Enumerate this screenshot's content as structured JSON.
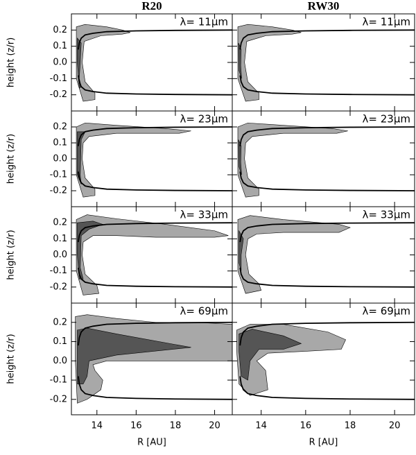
{
  "chart_data": [
    {
      "type": "contour",
      "title": "R20",
      "annotation": "λ= 11μm",
      "ylabel": "height (z/r)",
      "xlim": [
        12.7,
        20.9
      ],
      "ylim": [
        -0.3,
        0.3
      ],
      "xticks": [
        14,
        16,
        18,
        20
      ],
      "yticks": [
        -0.2,
        -0.1,
        {
          "value": 0,
          "label": "0.0"
        },
        0.1,
        0.2
      ],
      "regions": [
        {
          "color": "#a8a8a8",
          "x": [
            12.95,
            13.4,
            14.5,
            15.3,
            15.7,
            15.3,
            14.2,
            13.35,
            13.25,
            13.4,
            13.9,
            13.9,
            13.3,
            12.95
          ],
          "values": [
            0.22,
            0.235,
            0.22,
            0.2,
            0.185,
            0.175,
            0.165,
            0.13,
            0.0,
            -0.12,
            -0.19,
            -0.23,
            -0.24,
            -0.1
          ]
        },
        {
          "color": "#555555",
          "x": [
            13.0,
            13.2,
            13.15,
            13.1,
            13.2,
            13.1,
            13.0
          ],
          "values": [
            0.15,
            0.12,
            0.0,
            -0.1,
            -0.15,
            -0.16,
            0.0
          ]
        }
      ],
      "series": [
        {
          "color": "#000000",
          "x": [
            13.05,
            13.1,
            13.2,
            13.4,
            13.8,
            14.5,
            16,
            18,
            20.9
          ],
          "values": [
            0.08,
            0.12,
            0.15,
            0.17,
            0.18,
            0.19,
            0.195,
            0.198,
            0.2
          ]
        },
        {
          "color": "#000000",
          "x": [
            13.05,
            13.1,
            13.2,
            13.4,
            13.8,
            14.5,
            16,
            18,
            20.9
          ],
          "values": [
            -0.08,
            -0.12,
            -0.15,
            -0.17,
            -0.18,
            -0.19,
            -0.195,
            -0.198,
            -0.2
          ]
        }
      ]
    },
    {
      "type": "contour",
      "title": "RW30",
      "annotation": "λ= 11μm",
      "xlim": [
        12.7,
        20.9
      ],
      "ylim": [
        -0.3,
        0.3
      ],
      "xticks": [
        14,
        16,
        18,
        20
      ],
      "yticks": [
        -0.2,
        -0.1,
        {
          "value": 0,
          "label": "0.0"
        },
        0.1,
        0.2
      ],
      "regions": [
        {
          "color": "#a8a8a8",
          "x": [
            12.95,
            13.4,
            14.5,
            15.4,
            15.8,
            15.4,
            14.2,
            13.35,
            13.25,
            13.4,
            13.9,
            13.9,
            13.3,
            12.95
          ],
          "values": [
            0.22,
            0.235,
            0.22,
            0.2,
            0.185,
            0.175,
            0.165,
            0.13,
            0.0,
            -0.12,
            -0.19,
            -0.23,
            -0.24,
            -0.1
          ]
        },
        {
          "color": "#555555",
          "x": [
            12.98,
            13.1,
            13.08,
            13.12,
            13.0
          ],
          "values": [
            0.12,
            0.08,
            -0.02,
            -0.1,
            -0.05
          ]
        }
      ],
      "series": [
        {
          "color": "#000000",
          "x": [
            13.05,
            13.1,
            13.2,
            13.4,
            13.8,
            14.5,
            16,
            18,
            20.9
          ],
          "values": [
            0.08,
            0.12,
            0.15,
            0.17,
            0.18,
            0.19,
            0.195,
            0.198,
            0.2
          ]
        },
        {
          "color": "#000000",
          "x": [
            13.05,
            13.1,
            13.2,
            13.4,
            13.8,
            14.5,
            16,
            18,
            20.9
          ],
          "values": [
            -0.08,
            -0.12,
            -0.15,
            -0.17,
            -0.18,
            -0.19,
            -0.195,
            -0.198,
            -0.2
          ]
        }
      ]
    },
    {
      "type": "contour",
      "annotation": "λ= 23μm",
      "ylabel": "height (z/r)",
      "xlim": [
        12.7,
        20.9
      ],
      "ylim": [
        -0.3,
        0.3
      ],
      "xticks": [
        14,
        16,
        18,
        20
      ],
      "yticks": [
        -0.2,
        -0.1,
        {
          "value": 0,
          "label": "0.0"
        },
        0.1,
        0.2
      ],
      "regions": [
        {
          "color": "#a8a8a8",
          "x": [
            12.95,
            13.4,
            15,
            17.5,
            18.8,
            18.2,
            15,
            13.6,
            13.3,
            13.25,
            13.4,
            13.9,
            13.9,
            13.3,
            12.95
          ],
          "values": [
            0.2,
            0.225,
            0.21,
            0.19,
            0.175,
            0.16,
            0.16,
            0.14,
            0.1,
            0.0,
            -0.12,
            -0.19,
            -0.23,
            -0.24,
            -0.1
          ]
        },
        {
          "color": "#555555",
          "x": [
            13.0,
            13.4,
            13.2,
            13.15,
            13.2,
            13.0
          ],
          "values": [
            0.17,
            0.17,
            0.12,
            -0.1,
            -0.16,
            -0.1
          ]
        }
      ],
      "series": [
        {
          "color": "#000000",
          "x": [
            13.05,
            13.1,
            13.2,
            13.4,
            13.8,
            14.5,
            16,
            18,
            20.9
          ],
          "values": [
            0.08,
            0.12,
            0.15,
            0.17,
            0.18,
            0.19,
            0.195,
            0.198,
            0.2
          ]
        },
        {
          "color": "#000000",
          "x": [
            13.05,
            13.1,
            13.2,
            13.4,
            13.8,
            14.5,
            16,
            18,
            20.9
          ],
          "values": [
            -0.08,
            -0.12,
            -0.15,
            -0.17,
            -0.18,
            -0.19,
            -0.195,
            -0.198,
            -0.2
          ]
        }
      ]
    },
    {
      "type": "contour",
      "annotation": "λ= 23μm",
      "xlim": [
        12.7,
        20.9
      ],
      "ylim": [
        -0.3,
        0.3
      ],
      "xticks": [
        14,
        16,
        18,
        20
      ],
      "yticks": [
        -0.2,
        -0.1,
        {
          "value": 0,
          "label": "0.0"
        },
        0.1,
        0.2
      ],
      "regions": [
        {
          "color": "#a8a8a8",
          "x": [
            12.95,
            13.4,
            15,
            17.2,
            17.9,
            17.4,
            15,
            13.6,
            13.3,
            13.25,
            13.4,
            13.9,
            13.9,
            13.3,
            12.95
          ],
          "values": [
            0.2,
            0.225,
            0.21,
            0.19,
            0.175,
            0.16,
            0.16,
            0.14,
            0.1,
            0.0,
            -0.12,
            -0.19,
            -0.23,
            -0.24,
            -0.1
          ]
        },
        {
          "color": "#555555",
          "x": [
            12.98,
            13.1,
            13.08,
            13.12,
            13.0
          ],
          "values": [
            0.12,
            0.08,
            -0.02,
            -0.1,
            -0.05
          ]
        }
      ],
      "series": [
        {
          "color": "#000000",
          "x": [
            13.05,
            13.1,
            13.2,
            13.4,
            13.8,
            14.5,
            16,
            18,
            20.9
          ],
          "values": [
            0.08,
            0.12,
            0.15,
            0.17,
            0.18,
            0.19,
            0.195,
            0.198,
            0.2
          ]
        },
        {
          "color": "#000000",
          "x": [
            13.05,
            13.1,
            13.2,
            13.4,
            13.8,
            14.5,
            16,
            18,
            20.9
          ],
          "values": [
            -0.08,
            -0.12,
            -0.15,
            -0.17,
            -0.18,
            -0.19,
            -0.195,
            -0.198,
            -0.2
          ]
        }
      ]
    },
    {
      "type": "contour",
      "annotation": "λ= 33μm",
      "ylabel": "height (z/r)",
      "xlim": [
        12.7,
        20.9
      ],
      "ylim": [
        -0.3,
        0.3
      ],
      "xticks": [
        14,
        16,
        18,
        20
      ],
      "yticks": [
        -0.2,
        -0.1,
        {
          "value": 0,
          "label": "0.0"
        },
        0.1,
        0.2
      ],
      "regions": [
        {
          "color": "#a8a8a8",
          "x": [
            12.95,
            13.5,
            15,
            17.5,
            20,
            20.7,
            20,
            17,
            15,
            13.8,
            13.3,
            13.25,
            13.4,
            14.0,
            14.1,
            13.3,
            12.95
          ],
          "values": [
            0.22,
            0.25,
            0.225,
            0.19,
            0.15,
            0.12,
            0.11,
            0.11,
            0.12,
            0.12,
            0.08,
            0.0,
            -0.12,
            -0.19,
            -0.24,
            -0.25,
            -0.1
          ]
        },
        {
          "color": "#555555",
          "x": [
            13.0,
            13.8,
            14.3,
            13.6,
            13.2,
            13.15,
            13.3,
            13.1,
            13.0
          ],
          "values": [
            0.2,
            0.21,
            0.19,
            0.16,
            0.12,
            -0.08,
            -0.15,
            -0.15,
            0.0
          ]
        }
      ],
      "series": [
        {
          "color": "#000000",
          "x": [
            13.05,
            13.1,
            13.2,
            13.4,
            13.8,
            14.5,
            16,
            18,
            20.9
          ],
          "values": [
            0.08,
            0.12,
            0.15,
            0.17,
            0.18,
            0.19,
            0.195,
            0.198,
            0.2
          ]
        },
        {
          "color": "#000000",
          "x": [
            13.05,
            13.1,
            13.2,
            13.4,
            13.8,
            14.5,
            16,
            18,
            20.9
          ],
          "values": [
            -0.08,
            -0.12,
            -0.15,
            -0.17,
            -0.18,
            -0.19,
            -0.195,
            -0.198,
            -0.2
          ]
        }
      ]
    },
    {
      "type": "contour",
      "annotation": "λ= 33μm",
      "xlim": [
        12.7,
        20.9
      ],
      "ylim": [
        -0.3,
        0.3
      ],
      "xticks": [
        14,
        16,
        18,
        20
      ],
      "yticks": [
        -0.2,
        -0.1,
        {
          "value": 0,
          "label": "0.0"
        },
        0.1,
        0.2
      ],
      "regions": [
        {
          "color": "#a8a8a8",
          "x": [
            12.95,
            13.5,
            15,
            17.5,
            18.0,
            17.5,
            15,
            13.8,
            13.4,
            13.3,
            13.45,
            13.9,
            14.0,
            13.3,
            12.95
          ],
          "values": [
            0.22,
            0.245,
            0.22,
            0.19,
            0.17,
            0.14,
            0.14,
            0.13,
            0.1,
            0.0,
            -0.12,
            -0.18,
            -0.22,
            -0.24,
            -0.1
          ]
        },
        {
          "color": "#555555",
          "x": [
            13.0,
            13.2,
            13.1,
            13.1,
            13.0
          ],
          "values": [
            0.15,
            0.1,
            0.0,
            -0.1,
            -0.05
          ]
        }
      ],
      "series": [
        {
          "color": "#000000",
          "x": [
            13.05,
            13.1,
            13.2,
            13.4,
            13.8,
            14.5,
            16,
            18,
            20.9
          ],
          "values": [
            0.08,
            0.12,
            0.15,
            0.17,
            0.18,
            0.19,
            0.195,
            0.198,
            0.2
          ]
        },
        {
          "color": "#000000",
          "x": [
            13.05,
            13.1,
            13.2,
            13.4,
            13.8,
            14.5,
            16,
            18,
            20.9
          ],
          "values": [
            -0.08,
            -0.12,
            -0.15,
            -0.17,
            -0.18,
            -0.19,
            -0.195,
            -0.198,
            -0.2
          ]
        }
      ]
    },
    {
      "type": "contour",
      "annotation": "λ= 69μm",
      "ylabel": "height (z/r)",
      "xlabel": "R [AU]",
      "xlim": [
        12.7,
        20.9
      ],
      "ylim": [
        -0.28,
        0.3
      ],
      "xticks": [
        14,
        16,
        18,
        20
      ],
      "yticks": [
        -0.2,
        -0.1,
        {
          "value": 0,
          "label": "0.0"
        },
        0.1,
        0.2
      ],
      "regions": [
        {
          "color": "#a8a8a8",
          "x": [
            12.9,
            13.5,
            15,
            17,
            19,
            20.9,
            20.9,
            18,
            16,
            14.5,
            13.8,
            13.9,
            14.3,
            14.2,
            13.5,
            13.0,
            12.9
          ],
          "values": [
            0.23,
            0.24,
            0.22,
            0.2,
            0.2,
            0.19,
            0.0,
            0.0,
            0.0,
            0.0,
            -0.02,
            -0.05,
            -0.1,
            -0.15,
            -0.2,
            -0.22,
            0.0
          ]
        },
        {
          "color": "#555555",
          "x": [
            13.0,
            13.5,
            15,
            18.8,
            15,
            13.6,
            13.5,
            13.3,
            13.0
          ],
          "values": [
            0.16,
            0.17,
            0.14,
            0.07,
            0.03,
            0.0,
            -0.08,
            -0.12,
            -0.12
          ]
        }
      ],
      "series": [
        {
          "color": "#000000",
          "x": [
            13.05,
            13.1,
            13.2,
            13.4,
            13.8,
            14.5,
            16,
            18,
            20.9
          ],
          "values": [
            0.08,
            0.12,
            0.15,
            0.17,
            0.18,
            0.19,
            0.195,
            0.198,
            0.2
          ]
        },
        {
          "color": "#000000",
          "x": [
            13.05,
            13.1,
            13.2,
            13.4,
            13.8,
            14.5,
            16,
            18,
            20.9
          ],
          "values": [
            -0.08,
            -0.12,
            -0.15,
            -0.17,
            -0.18,
            -0.19,
            -0.195,
            -0.198,
            -0.2
          ]
        }
      ]
    },
    {
      "type": "contour",
      "annotation": "λ= 69μm",
      "xlabel": "R [AU]",
      "xlim": [
        12.7,
        20.9
      ],
      "ylim": [
        -0.28,
        0.3
      ],
      "xticks": [
        14,
        16,
        18,
        20
      ],
      "yticks": [
        -0.2,
        -0.1,
        {
          "value": 0,
          "label": "0.0"
        },
        0.1,
        0.2
      ],
      "regions": [
        {
          "color": "#a8a8a8",
          "x": [
            12.9,
            13.5,
            15,
            17,
            17.8,
            17.6,
            16,
            14.3,
            13.8,
            14.2,
            14.3,
            13.5,
            13.0,
            12.9
          ],
          "values": [
            0.16,
            0.19,
            0.19,
            0.15,
            0.11,
            0.06,
            0.05,
            0.04,
            0.0,
            -0.05,
            -0.15,
            -0.18,
            -0.12,
            0.05
          ]
        },
        {
          "color": "#555555",
          "x": [
            13.0,
            13.6,
            15,
            15.8,
            15,
            13.9,
            13.5,
            13.4,
            13.1,
            13.0
          ],
          "values": [
            0.14,
            0.165,
            0.13,
            0.09,
            0.06,
            0.06,
            0.0,
            -0.1,
            -0.08,
            0.05
          ]
        }
      ],
      "series": [
        {
          "color": "#000000",
          "x": [
            13.05,
            13.1,
            13.2,
            13.4,
            13.8,
            14.5,
            16,
            18,
            20.9
          ],
          "values": [
            0.08,
            0.12,
            0.15,
            0.17,
            0.18,
            0.19,
            0.195,
            0.198,
            0.2
          ]
        },
        {
          "color": "#000000",
          "x": [
            13.05,
            13.1,
            13.2,
            13.4,
            13.8,
            14.5,
            16,
            18,
            20.9
          ],
          "values": [
            -0.08,
            -0.12,
            -0.15,
            -0.17,
            -0.18,
            -0.19,
            -0.195,
            -0.198,
            -0.2
          ]
        }
      ]
    }
  ]
}
